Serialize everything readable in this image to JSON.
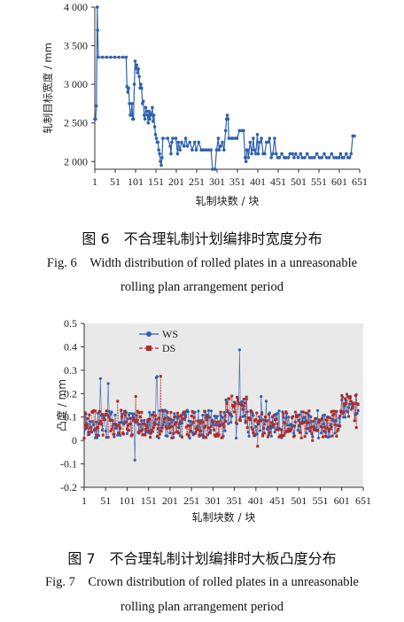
{
  "figure6": {
    "caption_cn": "图 6　不合理轧制计划编排时宽度分布",
    "caption_en_line1": "Fig. 6　Width distribution of rolled plates in a unreasonable",
    "caption_en_line2": "rolling plan arrangement period"
  },
  "figure7": {
    "caption_cn": "图 7　不合理轧制计划编排时大板凸度分布",
    "caption_en_line1": "Fig. 7　Crown distribution of rolled plates in a unreasonable",
    "caption_en_line2": "rolling plan arrangement period"
  },
  "colors": {
    "ws": "#2f62b0",
    "ds": "#b02a2a",
    "width": "#2f62b0"
  },
  "chart_data": [
    {
      "type": "line",
      "title": "",
      "xlabel": "轧制块数 / 块",
      "ylabel": "轧制目标宽度 / mm",
      "xlim": [
        1,
        651
      ],
      "ylim": [
        1900,
        4000
      ],
      "x_ticks": [
        "1",
        "51",
        "101",
        "151",
        "201",
        "251",
        "301",
        "351",
        "401",
        "451",
        "501",
        "551",
        "601",
        "651"
      ],
      "y_ticks": [
        "2 000",
        "2 500",
        "3 000",
        "3 500",
        "4 000"
      ],
      "series": [
        {
          "name": "",
          "points": [
            [
              1,
              2550
            ],
            [
              3,
              2550
            ],
            [
              5,
              2720
            ],
            [
              7,
              4000
            ],
            [
              8,
              3700
            ],
            [
              10,
              3350
            ],
            [
              20,
              3350
            ],
            [
              30,
              3350
            ],
            [
              40,
              3350
            ],
            [
              50,
              3350
            ],
            [
              60,
              3350
            ],
            [
              70,
              3350
            ],
            [
              78,
              3350
            ],
            [
              80,
              2970
            ],
            [
              82,
              2900
            ],
            [
              84,
              2950
            ],
            [
              86,
              2750
            ],
            [
              88,
              2600
            ],
            [
              90,
              2600
            ],
            [
              92,
              2750
            ],
            [
              94,
              2550
            ],
            [
              96,
              2550
            ],
            [
              98,
              3000
            ],
            [
              100,
              3300
            ],
            [
              102,
              3200
            ],
            [
              104,
              3250
            ],
            [
              106,
              3150
            ],
            [
              108,
              3200
            ],
            [
              110,
              3100
            ],
            [
              112,
              2950
            ],
            [
              114,
              3000
            ],
            [
              116,
              2950
            ],
            [
              118,
              2750
            ],
            [
              120,
              2780
            ],
            [
              122,
              2600
            ],
            [
              124,
              2550
            ],
            [
              126,
              2700
            ],
            [
              128,
              2650
            ],
            [
              130,
              2600
            ],
            [
              132,
              2500
            ],
            [
              134,
              2650
            ],
            [
              136,
              2550
            ],
            [
              138,
              2620
            ],
            [
              140,
              2600
            ],
            [
              142,
              2700
            ],
            [
              144,
              2520
            ],
            [
              146,
              2600
            ],
            [
              148,
              2450
            ],
            [
              150,
              2350
            ],
            [
              152,
              2300
            ],
            [
              154,
              2250
            ],
            [
              156,
              2250
            ],
            [
              158,
              2150
            ],
            [
              160,
              2100
            ],
            [
              162,
              2000
            ],
            [
              164,
              1950
            ],
            [
              166,
              2050
            ],
            [
              168,
              2300
            ],
            [
              180,
              2300
            ],
            [
              186,
              2200
            ],
            [
              188,
              2100
            ],
            [
              190,
              2250
            ],
            [
              192,
              2300
            ],
            [
              200,
              2300
            ],
            [
              204,
              2100
            ],
            [
              206,
              2250
            ],
            [
              210,
              2150
            ],
            [
              214,
              2250
            ],
            [
              220,
              2200
            ],
            [
              224,
              2300
            ],
            [
              228,
              2200
            ],
            [
              234,
              2250
            ],
            [
              240,
              2150
            ],
            [
              246,
              2250
            ],
            [
              250,
              2150
            ],
            [
              256,
              2250
            ],
            [
              262,
              2150
            ],
            [
              268,
              2150
            ],
            [
              274,
              2150
            ],
            [
              280,
              2150
            ],
            [
              286,
              2150
            ],
            [
              290,
              1900
            ],
            [
              296,
              1900
            ],
            [
              300,
              2150
            ],
            [
              304,
              2300
            ],
            [
              306,
              2150
            ],
            [
              310,
              2200
            ],
            [
              314,
              2250
            ],
            [
              318,
              2150
            ],
            [
              322,
              2400
            ],
            [
              324,
              2550
            ],
            [
              326,
              2600
            ],
            [
              328,
              2550
            ],
            [
              330,
              2300
            ],
            [
              336,
              2300
            ],
            [
              340,
              2300
            ],
            [
              346,
              2300
            ],
            [
              350,
              2300
            ],
            [
              356,
              2400
            ],
            [
              362,
              2400
            ],
            [
              366,
              2400
            ],
            [
              370,
              2050
            ],
            [
              372,
              2000
            ],
            [
              374,
              2150
            ],
            [
              376,
              2150
            ],
            [
              378,
              2050
            ],
            [
              382,
              2250
            ],
            [
              386,
              2100
            ],
            [
              390,
              2300
            ],
            [
              392,
              2150
            ],
            [
              396,
              2100
            ],
            [
              400,
              2350
            ],
            [
              402,
              2100
            ],
            [
              406,
              2250
            ],
            [
              410,
              2300
            ],
            [
              414,
              2100
            ],
            [
              418,
              2100
            ],
            [
              422,
              2250
            ],
            [
              426,
              2250
            ],
            [
              430,
              2300
            ],
            [
              434,
              2050
            ],
            [
              438,
              2100
            ],
            [
              442,
              2300
            ],
            [
              446,
              2100
            ],
            [
              450,
              2050
            ],
            [
              454,
              2050
            ],
            [
              460,
              2100
            ],
            [
              466,
              2050
            ],
            [
              470,
              2050
            ],
            [
              476,
              2050
            ],
            [
              480,
              2100
            ],
            [
              486,
              2100
            ],
            [
              490,
              2050
            ],
            [
              494,
              2100
            ],
            [
              500,
              2050
            ],
            [
              506,
              2100
            ],
            [
              510,
              2050
            ],
            [
              516,
              2050
            ],
            [
              522,
              2100
            ],
            [
              528,
              2050
            ],
            [
              534,
              2050
            ],
            [
              540,
              2050
            ],
            [
              546,
              2100
            ],
            [
              552,
              2050
            ],
            [
              558,
              2050
            ],
            [
              564,
              2100
            ],
            [
              570,
              2050
            ],
            [
              576,
              2050
            ],
            [
              582,
              2100
            ],
            [
              588,
              2050
            ],
            [
              594,
              2050
            ],
            [
              600,
              2050
            ],
            [
              604,
              2100
            ],
            [
              608,
              2050
            ],
            [
              612,
              2050
            ],
            [
              618,
              2100
            ],
            [
              622,
              2050
            ],
            [
              626,
              2050
            ],
            [
              630,
              2100
            ],
            [
              634,
              2330
            ],
            [
              638,
              2330
            ]
          ]
        }
      ]
    },
    {
      "type": "line",
      "title": "",
      "xlabel": "轧制块数 / 块",
      "ylabel": "凸度 / mm",
      "xlim": [
        1,
        651
      ],
      "ylim": [
        -0.2,
        0.5
      ],
      "x_ticks": [
        "1",
        "51",
        "101",
        "151",
        "201",
        "251",
        "301",
        "351",
        "401",
        "451",
        "501",
        "551",
        "601",
        "651"
      ],
      "y_ticks": [
        "-0.2",
        "-0.1",
        "0",
        "0.1",
        "0.2",
        "0.3",
        "0.4",
        "0.5"
      ],
      "legend": {
        "position": "top-left",
        "entries": [
          "WS",
          "DS"
        ]
      },
      "series": [
        {
          "name": "WS",
          "marker": "circle",
          "seed": 11
        },
        {
          "name": "DS",
          "marker": "square",
          "seed": 29
        }
      ]
    }
  ]
}
